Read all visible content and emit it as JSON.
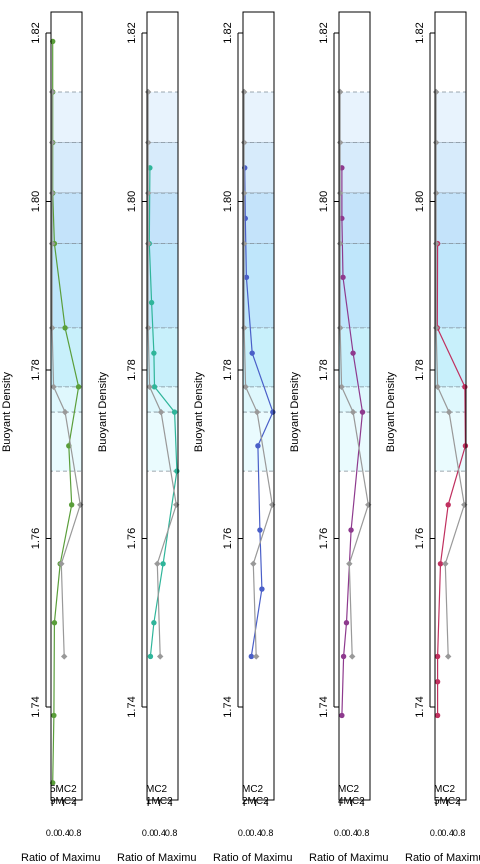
{
  "chart_data": [
    {
      "type": "line",
      "ylabel": "Buoyant Density",
      "xlabel": "Ratio of Maximu",
      "ylim": [
        1.73,
        1.823
      ],
      "xlim": [
        -0.04,
        1.04
      ],
      "ytick_labels": [
        "1.74",
        "1.76",
        "1.78",
        "1.80",
        "1.82"
      ],
      "xtick_labels": [
        "0.0",
        "0.4",
        "0.8"
      ],
      "legend": [
        "5MC2",
        "9MC2"
      ],
      "highlight_color": "#5a9e3a",
      "series": [
        {
          "color": "#5a9e3a",
          "x": [
            0.02,
            0.02,
            0.02,
            0.02,
            0.08,
            0.45,
            0.92,
            0.58,
            0.68,
            0.28,
            0.08,
            0.06,
            0.02
          ],
          "y": [
            1.819,
            1.813,
            1.807,
            1.801,
            1.795,
            1.785,
            1.778,
            1.771,
            1.764,
            1.757,
            1.75,
            1.739,
            1.731
          ]
        },
        {
          "color": "#999999",
          "x": [
            0.0,
            0.0,
            0.0,
            0.0,
            0.0,
            0.0,
            0.05,
            0.45,
            0.98,
            0.32,
            0.42
          ],
          "y": [
            1.813,
            1.807,
            1.801,
            1.795,
            1.795,
            1.785,
            1.778,
            1.775,
            1.764,
            1.757,
            1.746
          ]
        }
      ]
    },
    {
      "type": "line",
      "ylabel": "Buoyant Density",
      "xlabel": "Ratio of Maximu",
      "ylim": [
        1.73,
        1.823
      ],
      "xlim": [
        -0.04,
        1.04
      ],
      "ytick_labels": [
        "1.74",
        "1.76",
        "1.78",
        "1.80",
        "1.82"
      ],
      "xtick_labels": [
        "0.0",
        "0.4",
        "0.8"
      ],
      "legend": [
        "MC2",
        "1MC2"
      ],
      "highlight_color": "#2fb59a",
      "series": [
        {
          "color": "#2fb59a",
          "x": [
            0.06,
            0.04,
            0.12,
            0.2,
            0.22,
            0.92,
            1.0,
            0.52,
            0.2,
            0.08
          ],
          "y": [
            1.804,
            1.795,
            1.788,
            1.782,
            1.778,
            1.775,
            1.768,
            1.757,
            1.75,
            1.746
          ]
        },
        {
          "color": "#999999",
          "x": [
            0.0,
            0.0,
            0.0,
            0.0,
            0.0,
            0.05,
            0.45,
            0.98,
            0.32,
            0.42
          ],
          "y": [
            1.813,
            1.807,
            1.801,
            1.795,
            1.785,
            1.778,
            1.775,
            1.764,
            1.757,
            1.746
          ]
        }
      ]
    },
    {
      "type": "line",
      "ylabel": "Buoyant Density",
      "xlabel": "Ratio of Maximu",
      "ylim": [
        1.73,
        1.823
      ],
      "xlim": [
        -0.04,
        1.04
      ],
      "ytick_labels": [
        "1.74",
        "1.76",
        "1.78",
        "1.80",
        "1.82"
      ],
      "xtick_labels": [
        "0.0",
        "0.4",
        "0.8"
      ],
      "legend": [
        "MC2",
        "2MC2"
      ],
      "highlight_color": "#4a5fc8",
      "series": [
        {
          "color": "#4a5fc8",
          "x": [
            0.02,
            0.04,
            0.08,
            0.28,
            1.0,
            0.48,
            0.55,
            0.62,
            0.25
          ],
          "y": [
            1.804,
            1.798,
            1.791,
            1.782,
            1.775,
            1.771,
            1.761,
            1.754,
            1.746
          ]
        },
        {
          "color": "#999999",
          "x": [
            0.0,
            0.0,
            0.0,
            0.0,
            0.0,
            0.05,
            0.45,
            0.98,
            0.32,
            0.42
          ],
          "y": [
            1.813,
            1.807,
            1.801,
            1.795,
            1.785,
            1.778,
            1.775,
            1.764,
            1.757,
            1.746
          ]
        }
      ]
    },
    {
      "type": "line",
      "ylabel": "Buoyant Density",
      "xlabel": "Ratio of Maximu",
      "ylim": [
        1.73,
        1.823
      ],
      "xlim": [
        -0.04,
        1.04
      ],
      "ytick_labels": [
        "1.74",
        "1.76",
        "1.78",
        "1.80",
        "1.82"
      ],
      "xtick_labels": [
        "0.0",
        "0.4",
        "0.8"
      ],
      "legend": [
        "MC2",
        "4MC2"
      ],
      "highlight_color": "#8e3a8e",
      "series": [
        {
          "color": "#8e3a8e",
          "x": [
            0.06,
            0.06,
            0.1,
            0.45,
            0.78,
            0.38,
            0.22,
            0.12,
            0.06
          ],
          "y": [
            1.804,
            1.798,
            1.791,
            1.782,
            1.775,
            1.761,
            1.75,
            1.746,
            1.739
          ]
        },
        {
          "color": "#999999",
          "x": [
            0.0,
            0.0,
            0.0,
            0.0,
            0.0,
            0.05,
            0.45,
            0.98,
            0.32,
            0.42
          ],
          "y": [
            1.813,
            1.807,
            1.801,
            1.795,
            1.785,
            1.778,
            1.775,
            1.764,
            1.757,
            1.746
          ]
        }
      ]
    },
    {
      "type": "line",
      "ylabel": "Buoyant Density",
      "xlabel": "Ratio of Maximu",
      "ylim": [
        1.73,
        1.823
      ],
      "xlim": [
        -0.04,
        1.04
      ],
      "ytick_labels": [
        "1.74",
        "1.76",
        "1.78",
        "1.80",
        "1.82"
      ],
      "xtick_labels": [
        "0.0",
        "0.4",
        "0.8"
      ],
      "legend": [
        "MC2",
        "5MC2"
      ],
      "highlight_color": "#c0305f",
      "series": [
        {
          "color": "#c0305f",
          "x": [
            0.05,
            0.04,
            1.0,
            1.02,
            0.42,
            0.15,
            0.05,
            0.05,
            0.05
          ],
          "y": [
            1.795,
            1.785,
            1.778,
            1.771,
            1.764,
            1.757,
            1.746,
            1.743,
            1.739
          ]
        },
        {
          "color": "#999999",
          "x": [
            0.0,
            0.0,
            0.0,
            0.0,
            0.0,
            0.05,
            0.45,
            0.98,
            0.32,
            0.42
          ],
          "y": [
            1.813,
            1.807,
            1.801,
            1.795,
            1.785,
            1.778,
            1.775,
            1.764,
            1.757,
            1.746
          ]
        }
      ]
    }
  ],
  "bands": {
    "boundaries": [
      1.813,
      1.807,
      1.801,
      1.795,
      1.785,
      1.778,
      1.775,
      1.768
    ],
    "colors": [
      "#e8f3fd",
      "#d7ebfb",
      "#c4e3fa",
      "#bfe6fb",
      "#c8f0fb",
      "#dff8fd",
      "#eafbfe"
    ]
  }
}
